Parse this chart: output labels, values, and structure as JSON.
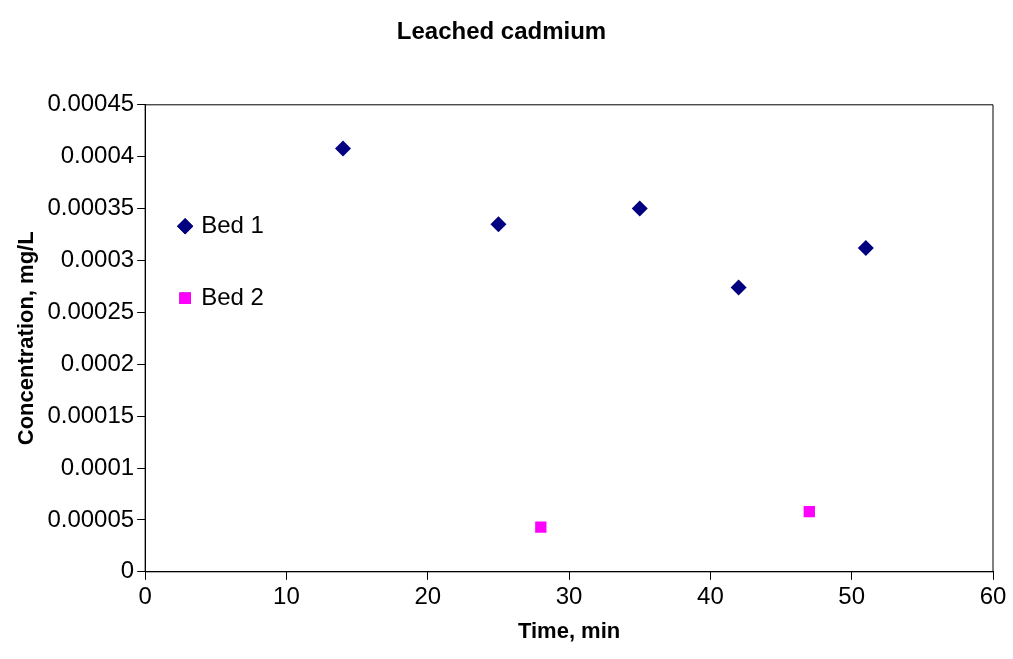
{
  "chart_data": {
    "type": "scatter",
    "title": "Leached cadmium",
    "xlabel": "Time, min",
    "ylabel": "Concentration, mg/L",
    "series": [
      {
        "name": "Bed 1",
        "color": "#000080",
        "marker": "diamond",
        "x": [
          14,
          25,
          35,
          42,
          51
        ],
        "values": [
          0.000408,
          0.000335,
          0.00035,
          0.000274,
          0.000312
        ]
      },
      {
        "name": "Bed 2",
        "color": "#ff00ff",
        "marker": "square",
        "x": [
          28,
          47
        ],
        "values": [
          4.3e-05,
          5.8e-05
        ]
      }
    ],
    "xlim": [
      0,
      60
    ],
    "xticks": [
      0,
      10,
      20,
      30,
      40,
      50,
      60
    ],
    "ylim": [
      0,
      0.00045
    ],
    "yticks": [
      0,
      {
        "value": 5e-05,
        "label": "0.00005"
      },
      0.0001,
      0.00015,
      0.0002,
      0.00025,
      0.0003,
      0.00035,
      0.0004,
      0.00045
    ],
    "grid": false,
    "legend": "left"
  }
}
